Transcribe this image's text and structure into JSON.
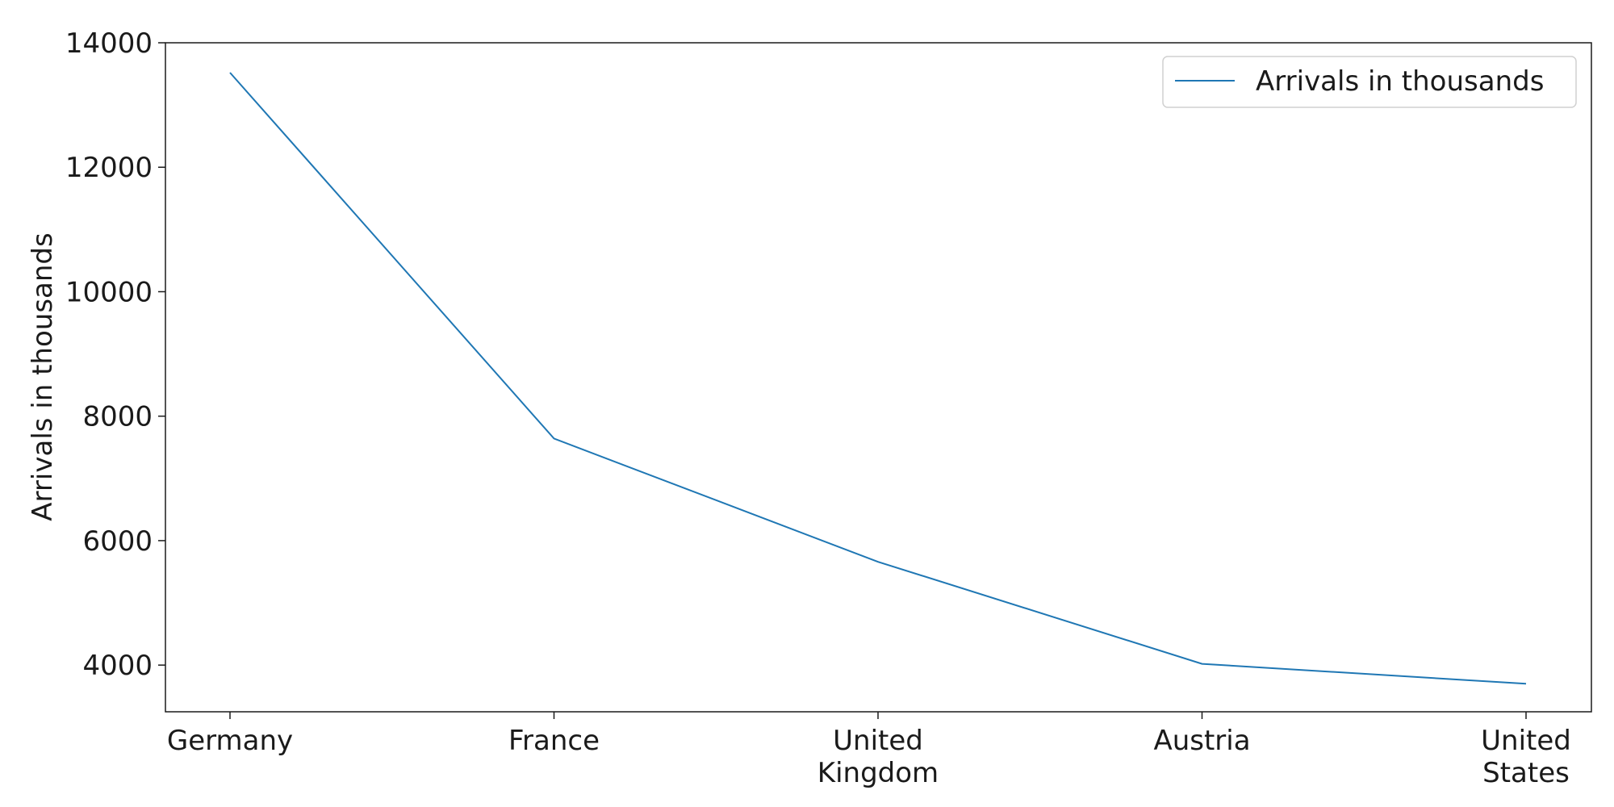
{
  "chart_data": {
    "type": "line",
    "categories": [
      "Germany",
      "France",
      "United Kingdom",
      "Austria",
      "United States"
    ],
    "category_lines": [
      [
        "Germany"
      ],
      [
        "France"
      ],
      [
        "United",
        "Kingdom"
      ],
      [
        "Austria"
      ],
      [
        "United",
        "States"
      ]
    ],
    "series": [
      {
        "name": "Arrivals in thousands",
        "values": [
          13520,
          7640,
          5660,
          4020,
          3700
        ],
        "color": "#1f77b4"
      }
    ],
    "title": "",
    "xlabel": "",
    "ylabel": "Arrivals in thousands",
    "ylim": [
      3250,
      14000
    ],
    "yticks": [
      4000,
      6000,
      8000,
      10000,
      12000,
      14000
    ],
    "grid": false,
    "legend_position": "top-right"
  }
}
